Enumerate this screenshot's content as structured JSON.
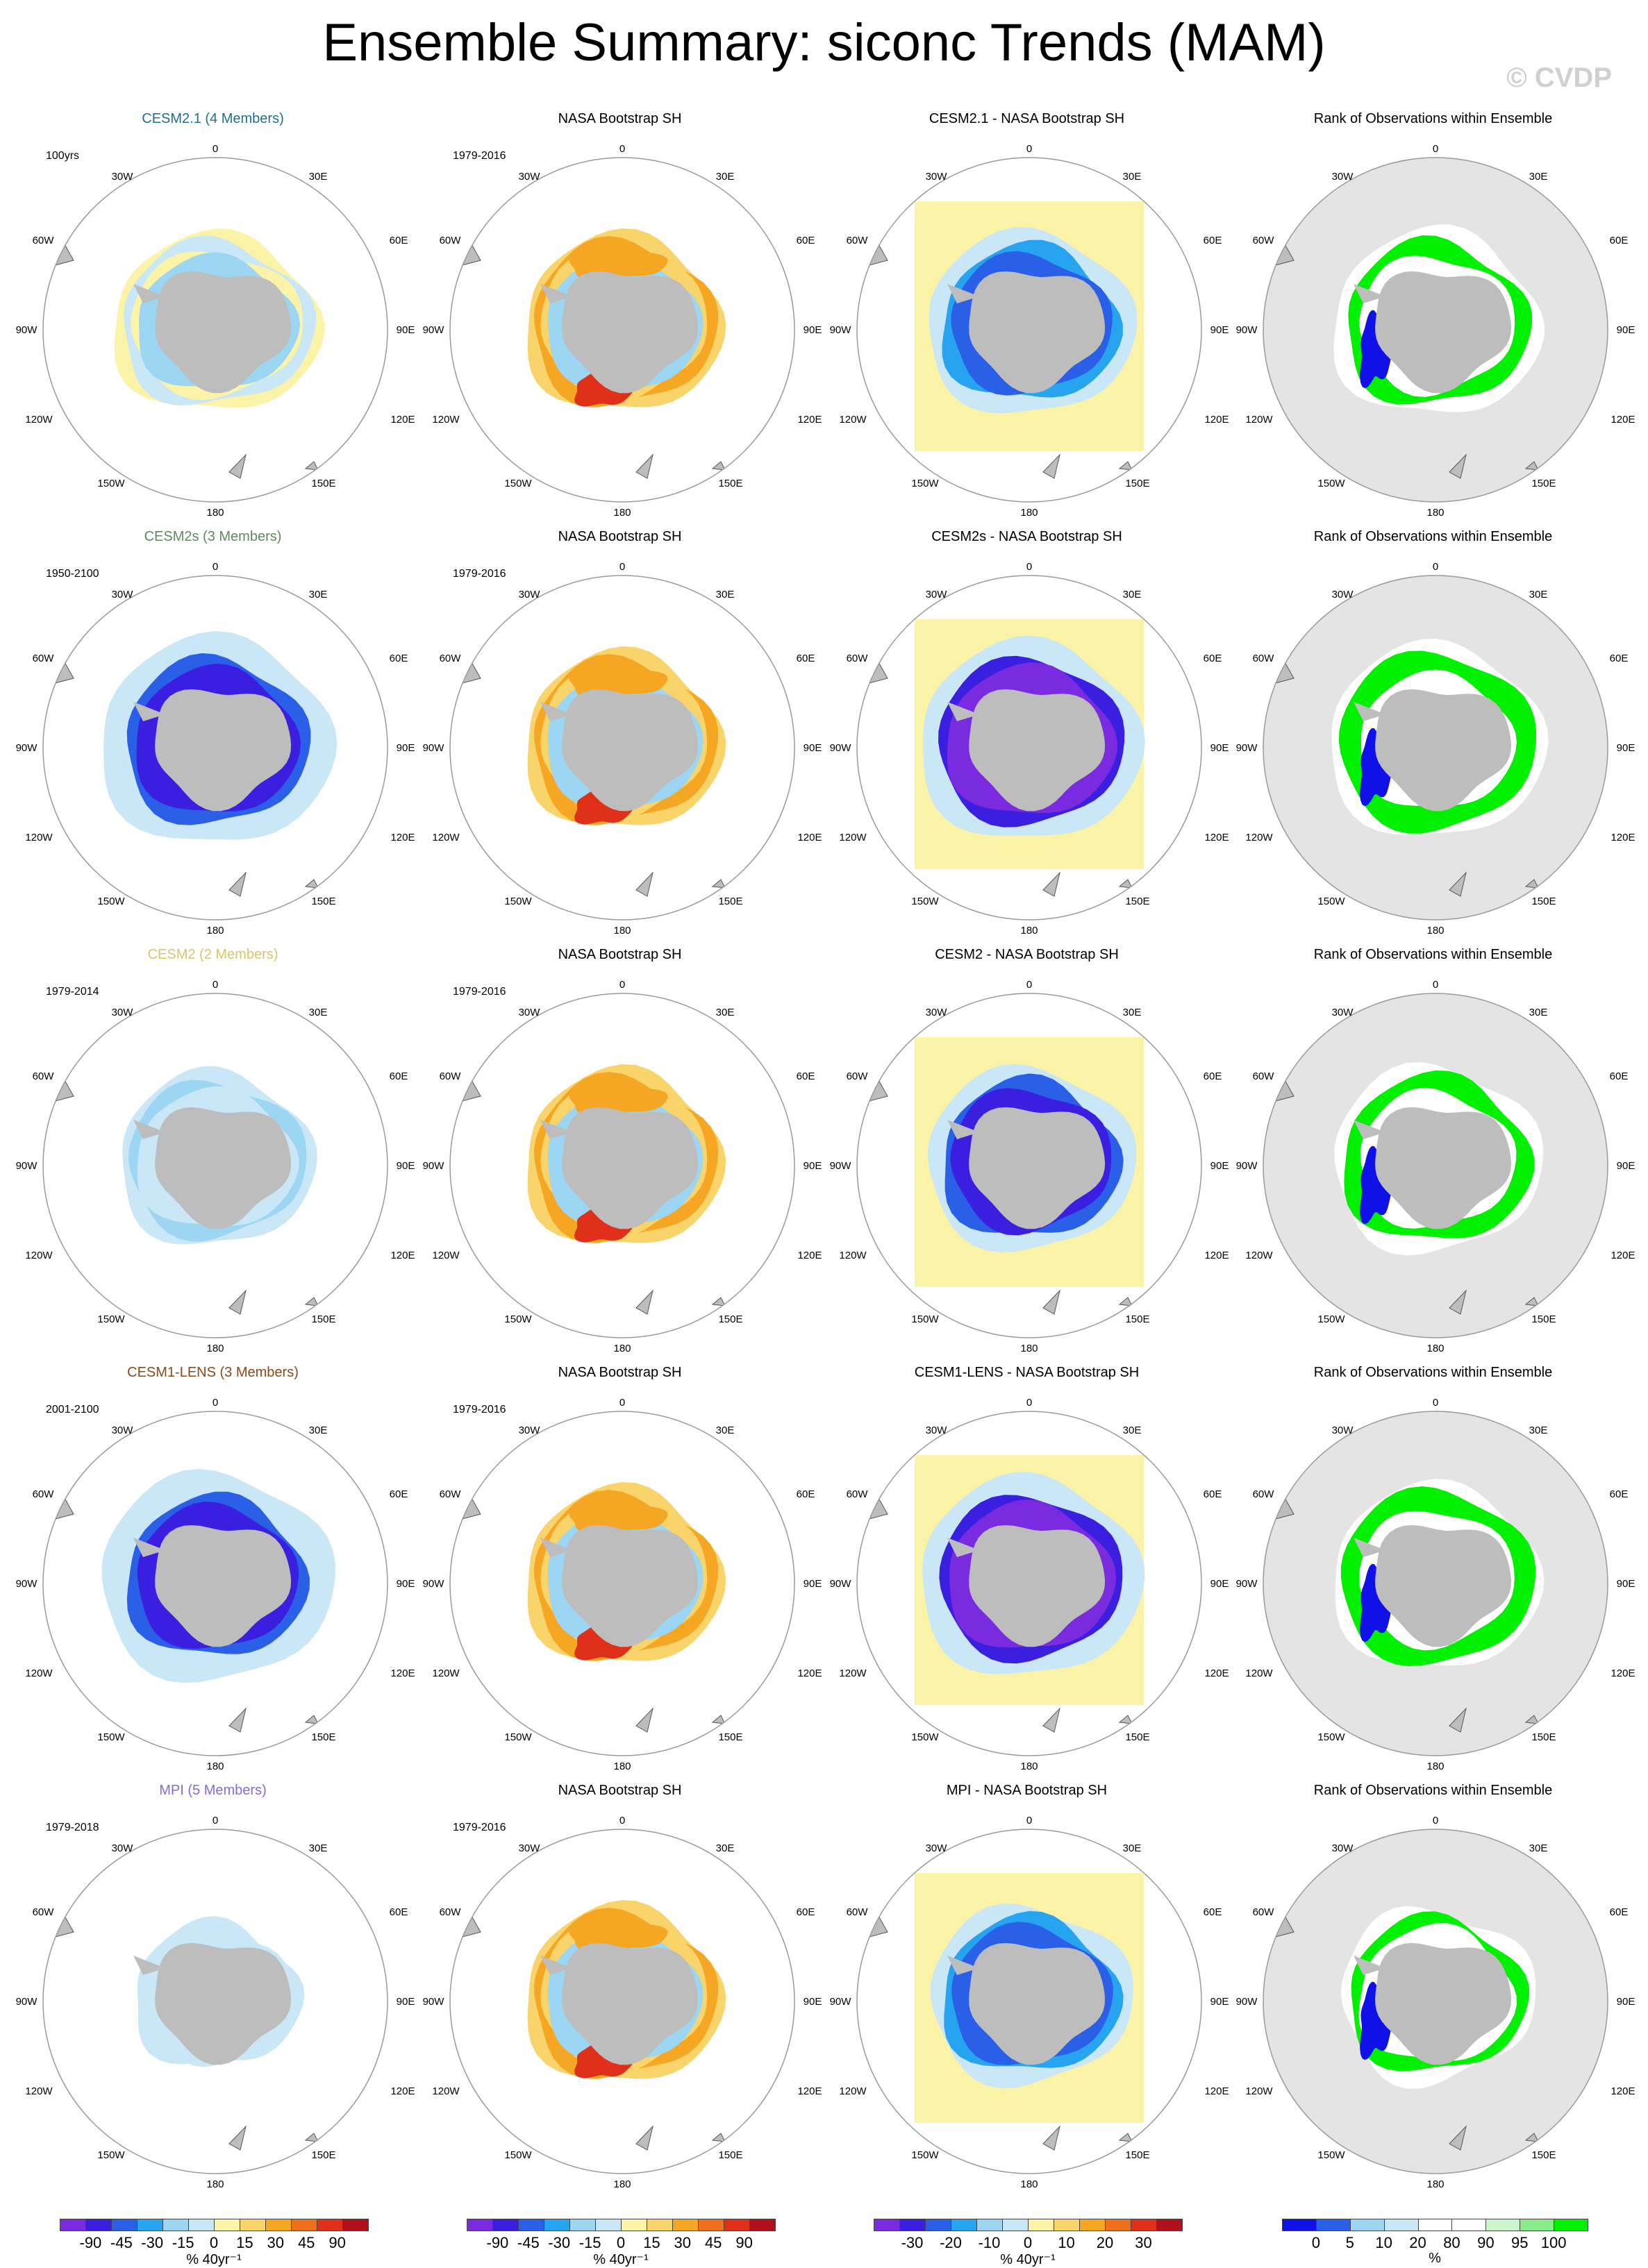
{
  "page": {
    "title": "Ensemble Summary: siconc Trends (MAM)",
    "watermark": "© CVDP"
  },
  "panel_titles": {
    "obs": "NASA Bootstrap SH",
    "rank": "Rank of Observations within Ensemble"
  },
  "map_labels": {
    "top": "0",
    "bottom": "180",
    "w30": "30W",
    "e30": "30E",
    "w60": "60W",
    "e60": "60E",
    "w90": "90W",
    "e90": "90E",
    "w120": "120W",
    "e120": "120E",
    "w150": "150W",
    "e150": "150E"
  },
  "chart_data": {
    "type": "heatmap",
    "title": "Ensemble Summary: siconc Trends (MAM)",
    "variable": "siconc",
    "season": "MAM",
    "observations": {
      "name": "NASA Bootstrap SH",
      "period": "1979-2016"
    },
    "rows": [
      {
        "model": "CESM2.1 (4 Members)",
        "period": "100yrs",
        "color": "#1f6f8f",
        "diff_title": "CESM2.1 - NASA Bootstrap SH"
      },
      {
        "model": "CESM2s (3 Members)",
        "period": "1950-2100",
        "color": "#5f8a5f",
        "diff_title": "CESM2s - NASA Bootstrap SH"
      },
      {
        "model": "CESM2 (2 Members)",
        "period": "1979-2014",
        "color": "#d8c66a",
        "diff_title": "CESM2 - NASA Bootstrap SH"
      },
      {
        "model": "CESM1-LENS (3 Members)",
        "period": "2001-2100",
        "color": "#8a4a1a",
        "diff_title": "CESM1-LENS - NASA Bootstrap SH"
      },
      {
        "model": "MPI (5 Members)",
        "period": "1979-2018",
        "color": "#8a6ad8",
        "diff_title": "MPI - NASA Bootstrap SH"
      }
    ],
    "colorbars": [
      {
        "name": "trend",
        "units": "% 40yr⁻¹",
        "ticks": [
          "-90",
          "-45",
          "-30",
          "-15",
          "0",
          "15",
          "30",
          "45",
          "90"
        ]
      },
      {
        "name": "obs-trend",
        "units": "% 40yr⁻¹",
        "ticks": [
          "-90",
          "-45",
          "-30",
          "-15",
          "0",
          "15",
          "30",
          "45",
          "90"
        ]
      },
      {
        "name": "difference",
        "units": "% 40yr⁻¹",
        "ticks": [
          "-30",
          "-20",
          "-10",
          "0",
          "10",
          "20",
          "30"
        ]
      },
      {
        "name": "rank",
        "units": "%",
        "ticks": [
          "0",
          "5",
          "10",
          "20",
          "80",
          "90",
          "95",
          "100"
        ]
      }
    ]
  },
  "colors": {
    "land": "#bdbdbd",
    "ocean_rank": "#e4e4e4",
    "neg5": "#7a2be0",
    "neg4": "#3b1fe0",
    "neg3": "#2a5fe8",
    "neg2": "#27a4ef",
    "neg1": "#9dd6f2",
    "neg0": "#c9e7f6",
    "pos0": "#fbf4a8",
    "pos1": "#f8d46a",
    "pos2": "#f5a623",
    "pos3": "#ee6f1c",
    "pos4": "#e0301a",
    "pos5": "#b0101a",
    "green": "#00f000",
    "blue": "#1010e8",
    "white": "#ffffff",
    "grid": "#9a9a9a"
  }
}
